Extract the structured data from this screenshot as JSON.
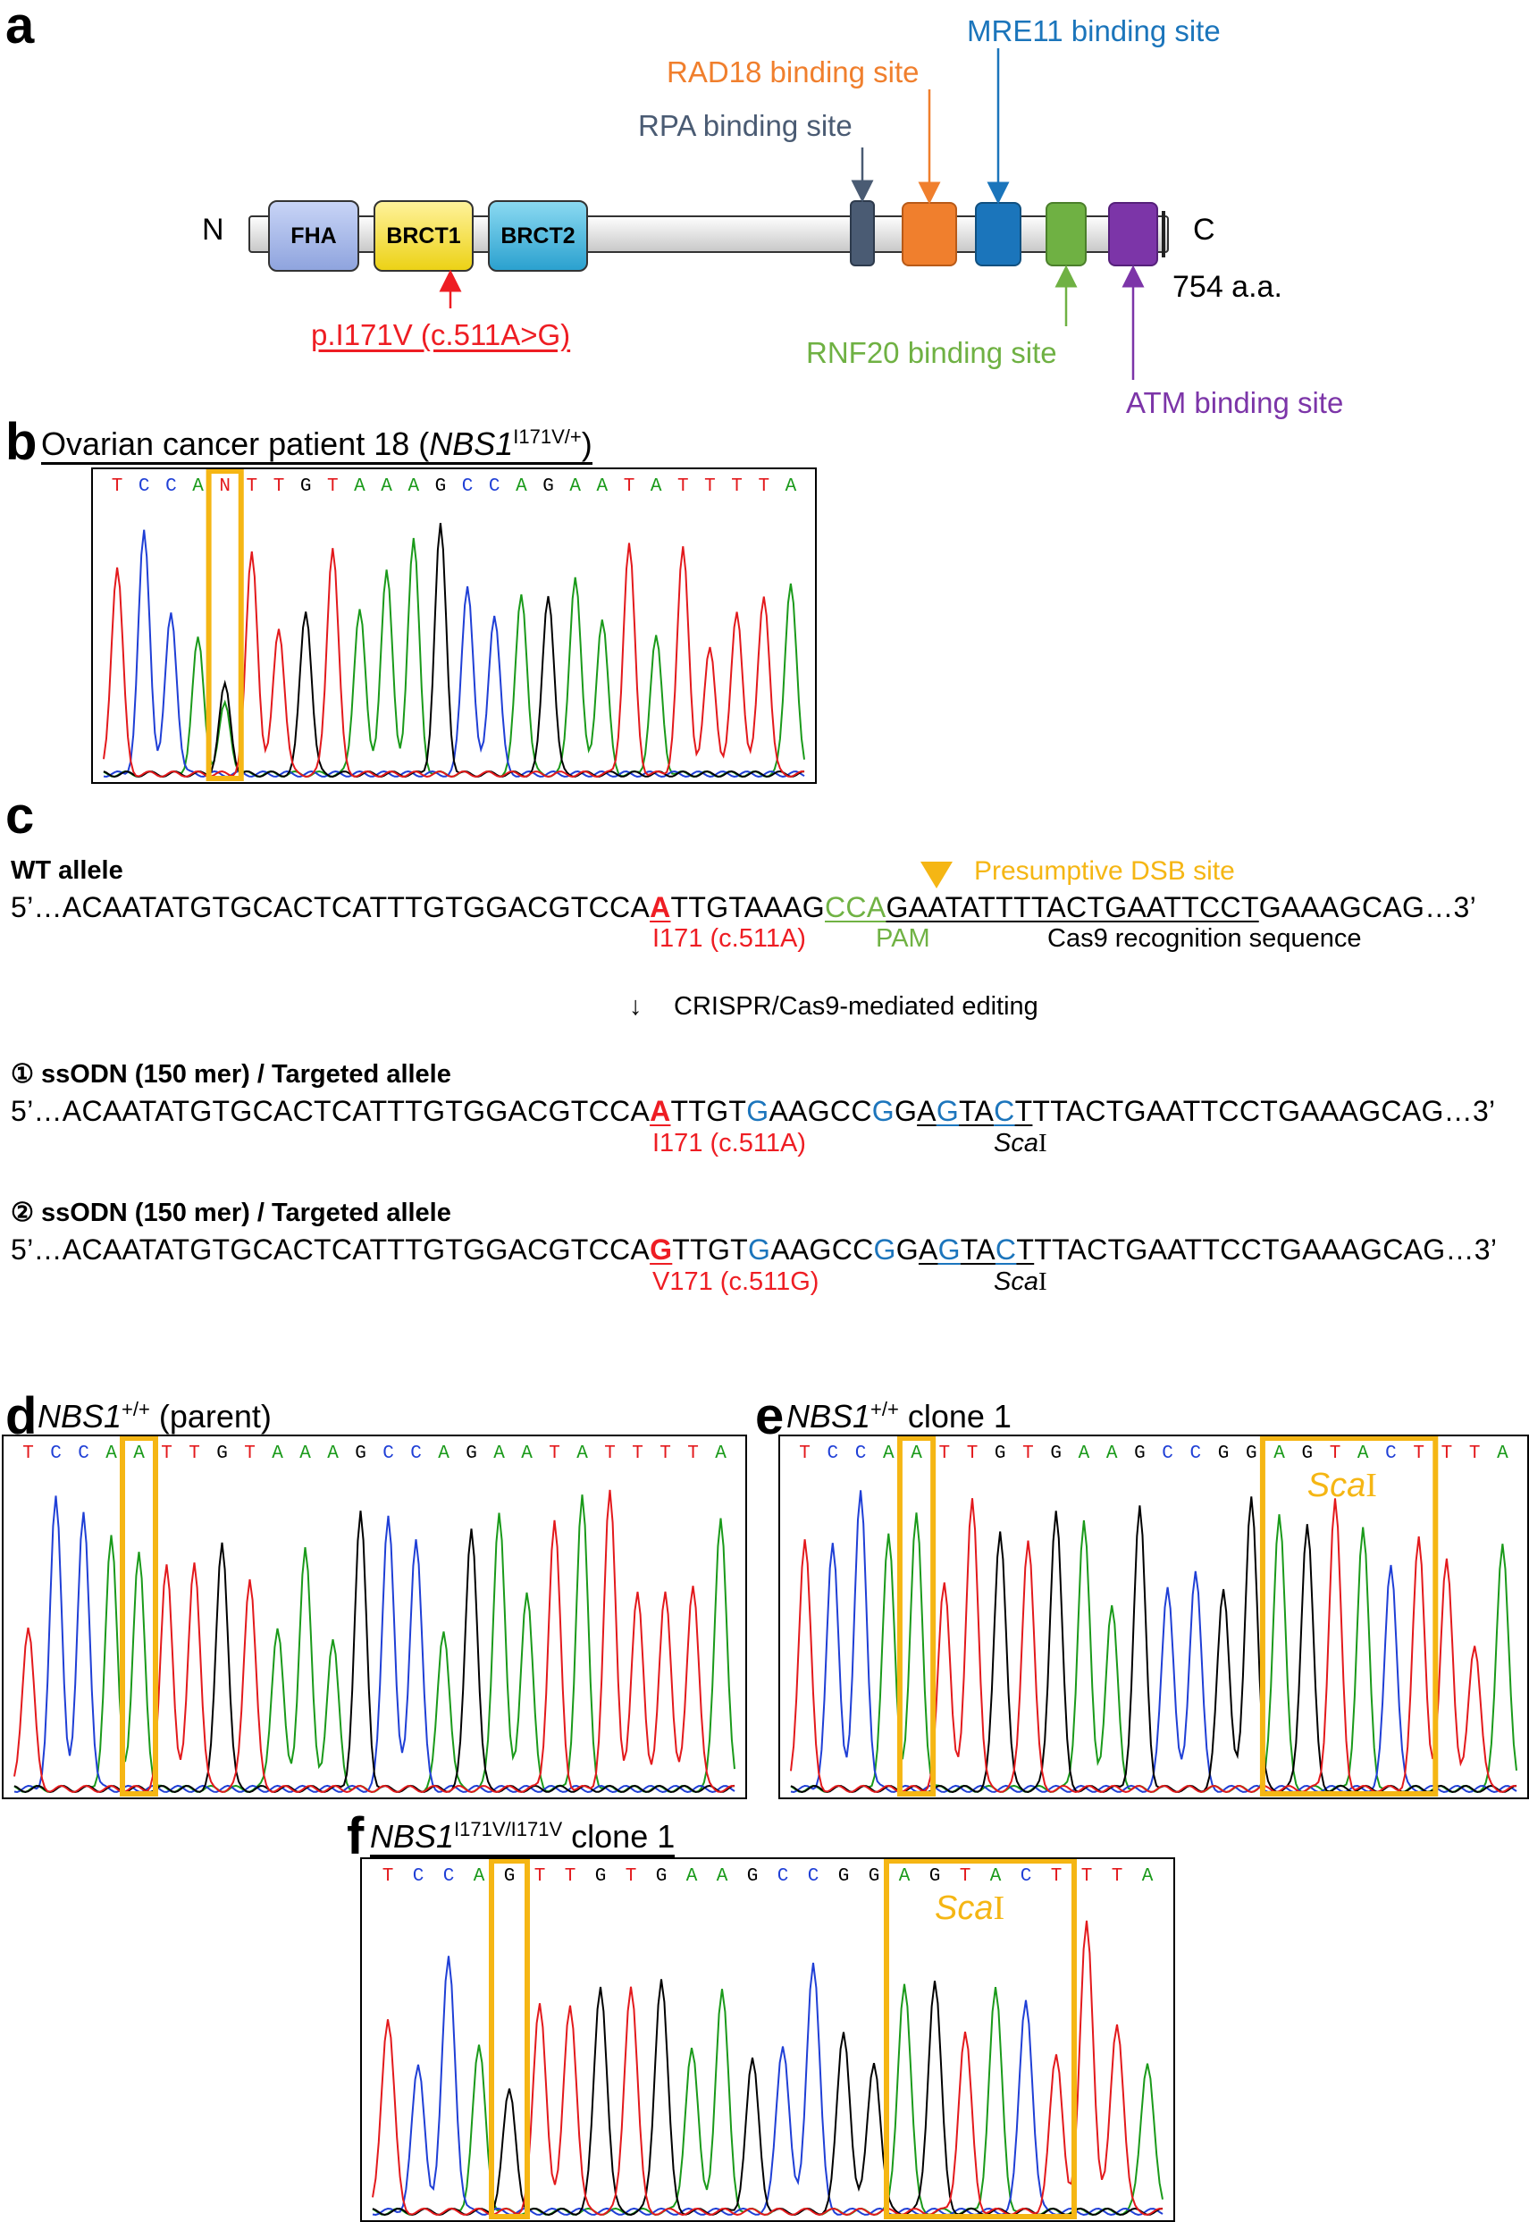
{
  "panel_a": {
    "label": "a",
    "n_term": "N",
    "c_term": "C",
    "length": "754 a.a.",
    "domains": [
      {
        "name": "FHA",
        "color": "#a6b8ea"
      },
      {
        "name": "BRCT1",
        "color": "#f8e43b"
      },
      {
        "name": "BRCT2",
        "color": "#3ab1d8"
      }
    ],
    "variant": "p.I171V (c.511A>G)",
    "sites": [
      {
        "label": "RPA binding site",
        "color": "#4a5b73"
      },
      {
        "label": "RAD18 binding site",
        "color": "#f07f2d"
      },
      {
        "label": "MRE11 binding site",
        "color": "#1b75bb"
      },
      {
        "label": "RNF20 binding site",
        "color": "#6fb143"
      },
      {
        "label": "ATM binding site",
        "color": "#7c35a8"
      }
    ]
  },
  "panel_b": {
    "label": "b",
    "title_pre": "Ovarian cancer patient 18 (",
    "title_gene": "NBS1",
    "title_sup": "I171V/+",
    "title_post": ")",
    "bases": "TCCANTTGTAAAGCCAGAATATTTTA"
  },
  "panel_c": {
    "label": "c",
    "wt_header": "WT allele",
    "dsb_label": "Presumptive DSB site",
    "wt_seq": {
      "s1": "5’…ACAATATGTGCACTCATTTGTGGACGTCCA",
      "mut": "A",
      "s2": "TTGTAAAG",
      "pam": "CCA",
      "cas": "GAATATTTTACTGAATTCCT",
      "s3": "GAAAGCAG…3’"
    },
    "wt_mut_label": "I171 (c.511A)",
    "pam_label": "PAM",
    "cas_label": "Cas9 recognition sequence",
    "arrow_text": "↓",
    "crispr_label": "CRISPR/Cas9-mediated editing",
    "t1_header": "① ssODN (150 mer) / Targeted allele",
    "t1_mut_label": "I171 (c.511A)",
    "t2_header": "② ssODN (150 mer) / Targeted allele",
    "t2_mut_label": "V171 (c.511G)",
    "seq_prefix": "5’…ACAATATGTGCACTCATTTGTGGACGTCCA",
    "t1_mut": "A",
    "t2_mut": "G",
    "seq_mid_a": "TTGT",
    "seq_mid_b": "G",
    "seq_mid_c": "AAGCC",
    "seq_mid_d": "G",
    "seq_mid_e": "G",
    "seq_sca_a": "A",
    "seq_sca_b": "G",
    "seq_sca_c": "TA",
    "seq_sca_d": "C",
    "seq_sca_e": "T",
    "seq_suffix": "TTACTGAATTCCTGAAAGCAG…3’",
    "sca_label": "Sca",
    "sca_roman": "I"
  },
  "panel_d": {
    "label": "d",
    "title_gene": "NBS1",
    "title_sup": "+/+",
    "title_post": " (parent)",
    "bases": "TCCAATTGTAAAGCCAGAATATTTTA"
  },
  "panel_e": {
    "label": "e",
    "title_gene": "NBS1",
    "title_sup": "+/+",
    "title_post": " clone 1",
    "bases": "TCCAATTGTGAAGCCGGAGTACTTTA",
    "box_label": "Sca",
    "box_roman": "I"
  },
  "panel_f": {
    "label": "f",
    "title_gene": "NBS1",
    "title_sup": "I171V/I171V",
    "title_post": " clone 1",
    "bases": "TCCAGTTGTGAAGCCGGAGTACTTTA",
    "box_label": "Sca",
    "box_roman": "I"
  },
  "colors": {
    "A": "#1a9a1a",
    "C": "#1f3fd6",
    "G": "#000000",
    "T": "#e3191c",
    "N": "#e3191c",
    "highlight": "#f5b614"
  }
}
